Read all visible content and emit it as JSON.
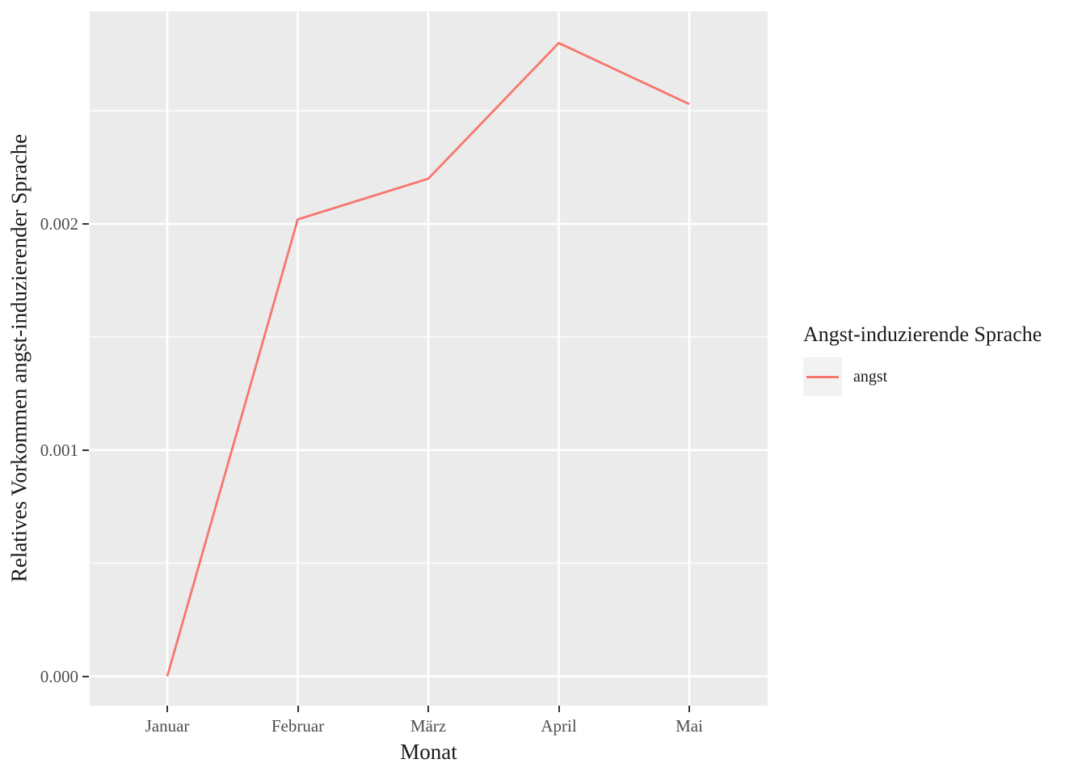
{
  "chart_data": {
    "type": "line",
    "x_categories": [
      "Januar",
      "Februar",
      "März",
      "April",
      "Mai"
    ],
    "series": [
      {
        "name": "angst",
        "values": [
          0.0,
          0.00202,
          0.0022,
          0.0028,
          0.00253
        ]
      }
    ],
    "xlabel": "Monat",
    "ylabel": "Relatives Vorkommen angst-induzierender Sprache",
    "ylim": [
      -0.00013,
      0.00294
    ],
    "yticks_major": [
      0.0,
      0.001,
      0.002
    ],
    "ytick_labels": [
      "0.000",
      "0.001",
      "0.002"
    ],
    "yticks_minor": [
      0.0005,
      0.0015,
      0.0025
    ],
    "grid": "major-and-minor-horizontal, major-vertical",
    "legend": {
      "position": "right",
      "title": "Angst-induzierende Sprache",
      "entries": [
        {
          "label": "angst",
          "color": "#F8766D"
        }
      ]
    }
  },
  "colors": {
    "panel_background": "#EBEBEB",
    "grid_line": "#FFFFFF",
    "series_line": "#F8766D",
    "tick_text": "#4D4D4D",
    "axis_title_text": "#1A1A1A",
    "legend_key_background": "#F2F2F2",
    "tick_mark": "#333333",
    "figure_background": "#FFFFFF"
  }
}
